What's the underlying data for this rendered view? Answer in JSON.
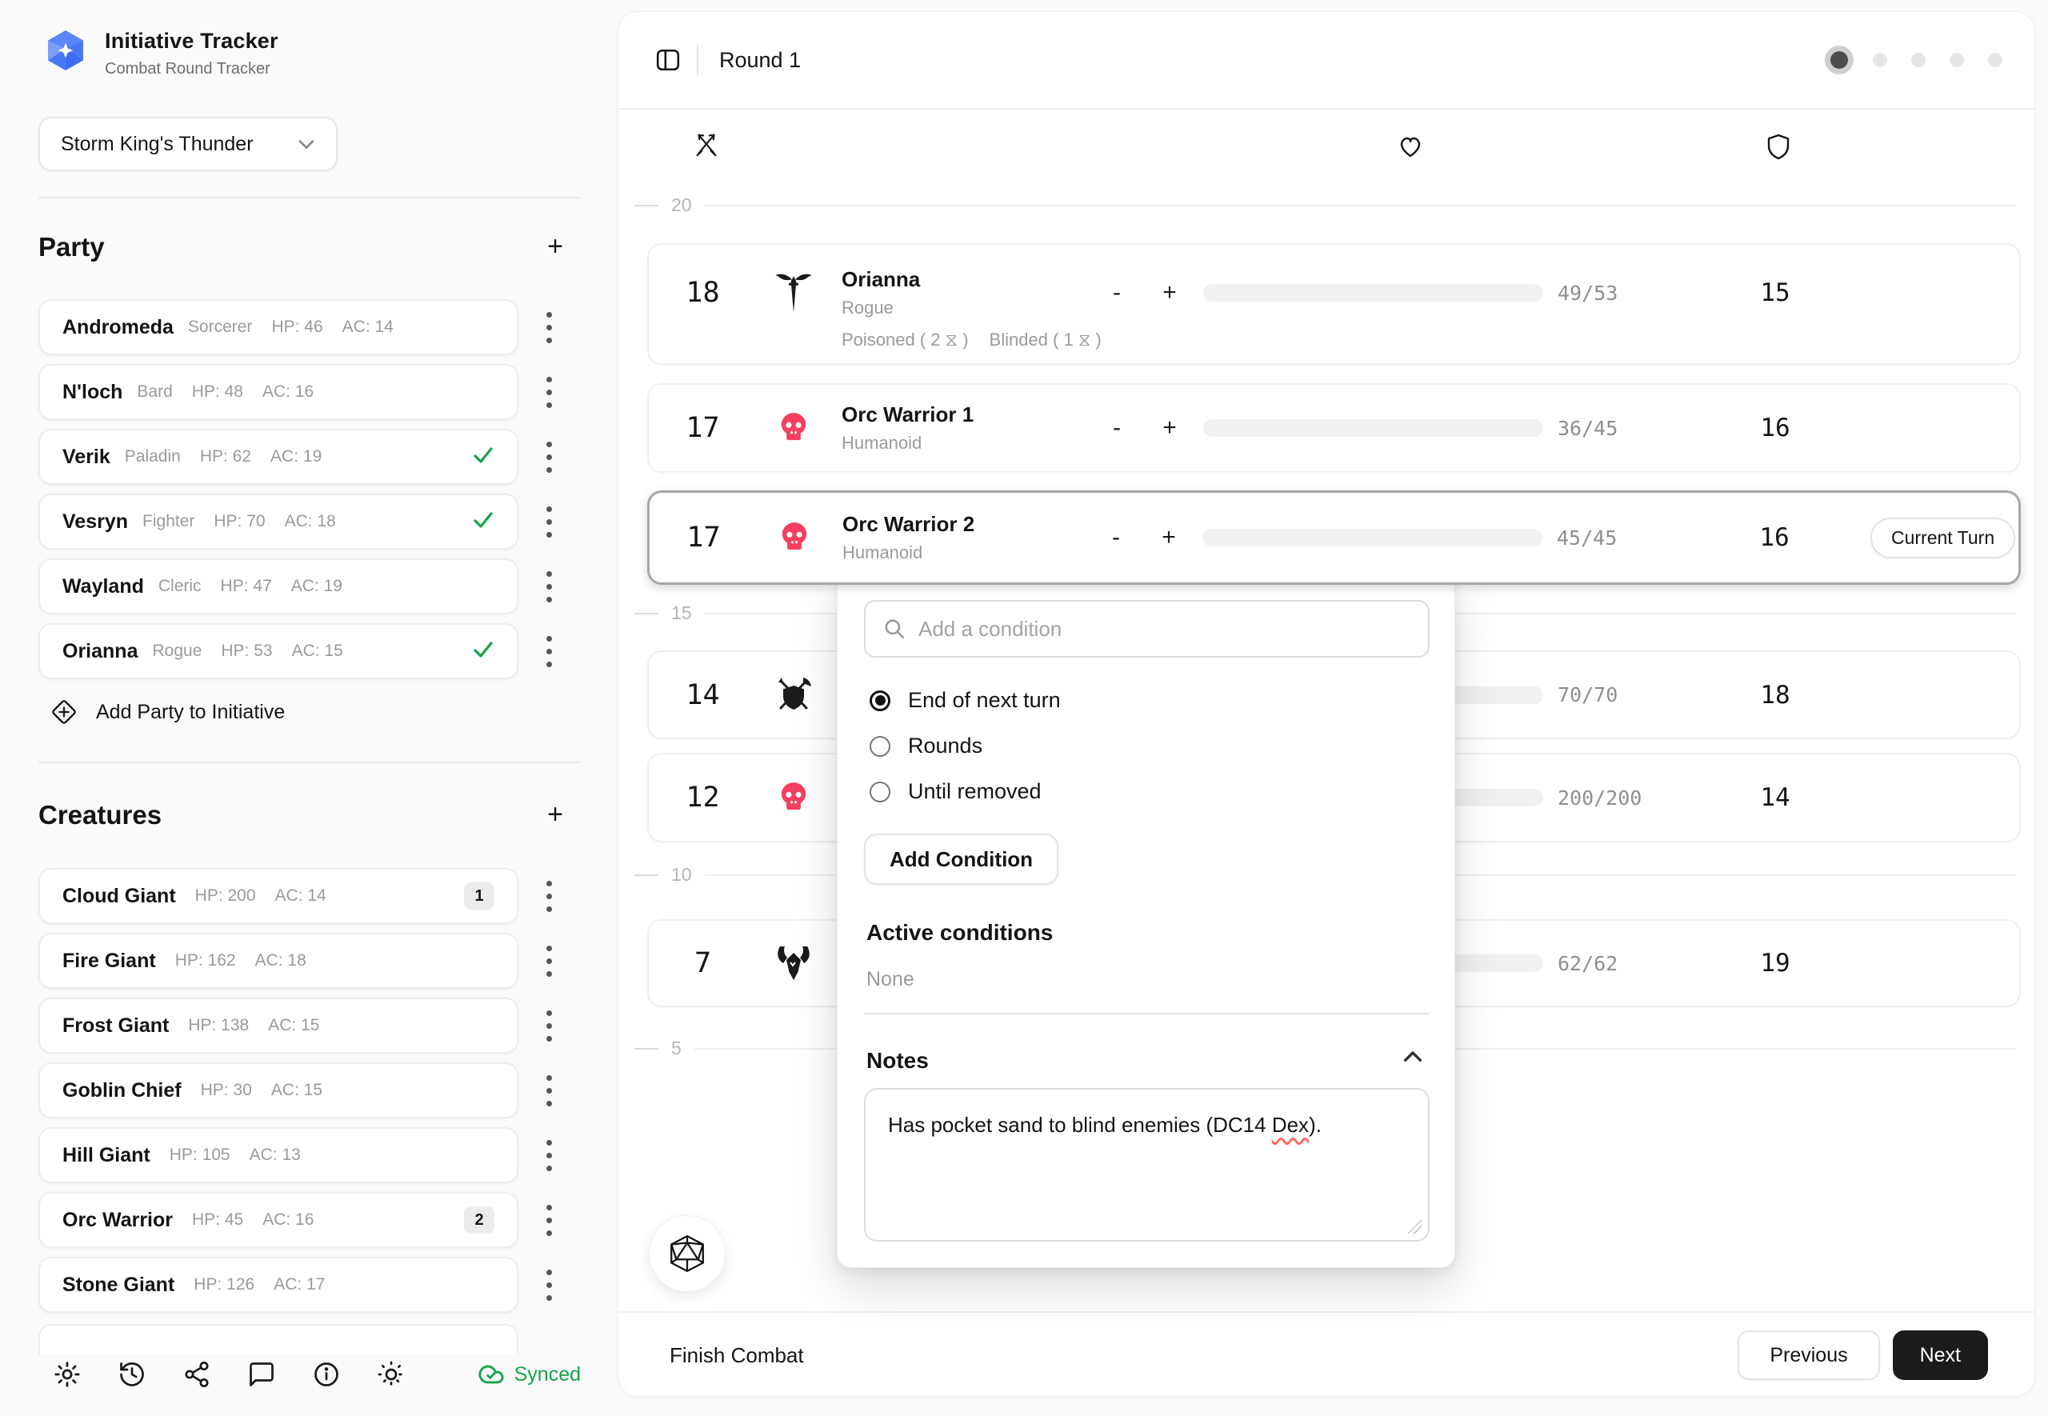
{
  "sidebar": {
    "app_title": "Initiative Tracker",
    "app_subtitle": "Combat Round Tracker",
    "campaign": "Storm King's Thunder",
    "party": {
      "heading": "Party",
      "add_label": "+",
      "members": [
        {
          "name": "Andromeda",
          "cls": "Sorcerer",
          "hp": "HP: 46",
          "ac": "AC: 14",
          "checked": false
        },
        {
          "name": "N'loch",
          "cls": "Bard",
          "hp": "HP: 48",
          "ac": "AC: 16",
          "checked": false
        },
        {
          "name": "Verik",
          "cls": "Paladin",
          "hp": "HP: 62",
          "ac": "AC: 19",
          "checked": true
        },
        {
          "name": "Vesryn",
          "cls": "Fighter",
          "hp": "HP: 70",
          "ac": "AC: 18",
          "checked": true
        },
        {
          "name": "Wayland",
          "cls": "Cleric",
          "hp": "HP: 47",
          "ac": "AC: 19",
          "checked": false
        },
        {
          "name": "Orianna",
          "cls": "Rogue",
          "hp": "HP: 53",
          "ac": "AC: 15",
          "checked": true
        }
      ],
      "add_party_label": "Add Party to Initiative"
    },
    "creatures": {
      "heading": "Creatures",
      "add_label": "+",
      "items": [
        {
          "name": "Cloud Giant",
          "hp": "HP: 200",
          "ac": "AC: 14",
          "count": "1"
        },
        {
          "name": "Fire Giant",
          "hp": "HP: 162",
          "ac": "AC: 18"
        },
        {
          "name": "Frost Giant",
          "hp": "HP: 138",
          "ac": "AC: 15"
        },
        {
          "name": "Goblin Chief",
          "hp": "HP: 30",
          "ac": "AC: 15"
        },
        {
          "name": "Hill Giant",
          "hp": "HP: 105",
          "ac": "AC: 13"
        },
        {
          "name": "Orc Warrior",
          "hp": "HP: 45",
          "ac": "AC: 16",
          "count": "2"
        },
        {
          "name": "Stone Giant",
          "hp": "HP: 126",
          "ac": "AC: 17"
        }
      ]
    },
    "sync_status": "Synced"
  },
  "combat": {
    "round_label": "Round 1",
    "progress_dots_total": 5,
    "progress_dots_active": 1,
    "ruler": [
      "20",
      "15",
      "10",
      "5"
    ],
    "hp_minus": "-",
    "hp_plus": "+",
    "current_turn_badge": "Current Turn",
    "rows": [
      {
        "init": "18",
        "name": "Orianna",
        "type": "Rogue",
        "icon": "winged-dagger-icon",
        "hp": "49/53",
        "hp_pct": "92%",
        "ac": "15",
        "conditions": [
          "Poisoned ( 2 ⧖ )",
          "Blinded ( 1 ⧖ )"
        ]
      },
      {
        "init": "17",
        "name": "Orc Warrior 1",
        "type": "Humanoid",
        "icon": "skull-icon",
        "hp": "36/45",
        "hp_pct": "80%",
        "ac": "16"
      },
      {
        "init": "17",
        "name": "Orc Warrior 2",
        "type": "Humanoid",
        "icon": "skull-icon",
        "hp": "45/45",
        "hp_pct": "100%",
        "ac": "16",
        "current": true
      },
      {
        "init": "14",
        "icon": "shield-weapons-icon",
        "hp": "70/70",
        "hp_pct": "100%",
        "ac": "18"
      },
      {
        "init": "12",
        "icon": "skull-icon",
        "hp": "200/200",
        "hp_pct": "100%",
        "ac": "14"
      },
      {
        "init": "7",
        "icon": "horned-helm-icon",
        "hp": "62/62",
        "hp_pct": "100%",
        "ac": "19"
      }
    ]
  },
  "condition_popover": {
    "search_placeholder": "Add a condition",
    "duration_options": [
      {
        "label": "End of next turn",
        "selected": true
      },
      {
        "label": "Rounds",
        "selected": false
      },
      {
        "label": "Until removed",
        "selected": false
      }
    ],
    "add_button_label": "Add Condition",
    "active_heading": "Active conditions",
    "active_value": "None",
    "notes_heading": "Notes",
    "notes_parts": [
      "Has pocket sand to blind enemies (DC14 ",
      "Dex",
      ")."
    ]
  },
  "bottom_bar": {
    "finish_label": "Finish Combat",
    "previous_label": "Previous",
    "next_label": "Next"
  },
  "colors": {
    "accent_green": "#12b76a",
    "skull_pink": "#f43f5e",
    "logo_blue": "#3e6df3",
    "synced_green": "#16a34a"
  }
}
